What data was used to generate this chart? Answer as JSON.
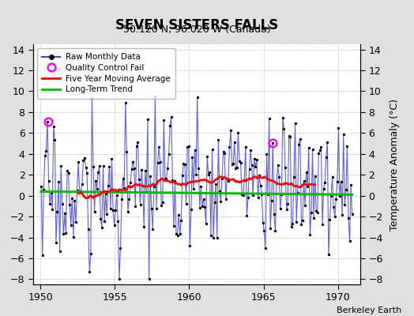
{
  "title": "SEVEN SISTERS FALLS",
  "subtitle": "50.120 N, 96.020 W (Canada)",
  "ylabel": "Temperature Anomaly (°C)",
  "watermark": "Berkeley Earth",
  "xlim": [
    1949.5,
    1971.5
  ],
  "ylim": [
    -8.5,
    14.5
  ],
  "yticks": [
    -8,
    -6,
    -4,
    -2,
    0,
    2,
    4,
    6,
    8,
    10,
    12,
    14
  ],
  "xticks": [
    1950,
    1955,
    1960,
    1965,
    1970
  ],
  "bg_color": "#e0e0e0",
  "plot_bg_color": "#ffffff",
  "line_color": "#4444dd",
  "ma_color": "#ff0000",
  "trend_color": "#00bb00",
  "qc_color": "#ff00ff",
  "seed": 17
}
